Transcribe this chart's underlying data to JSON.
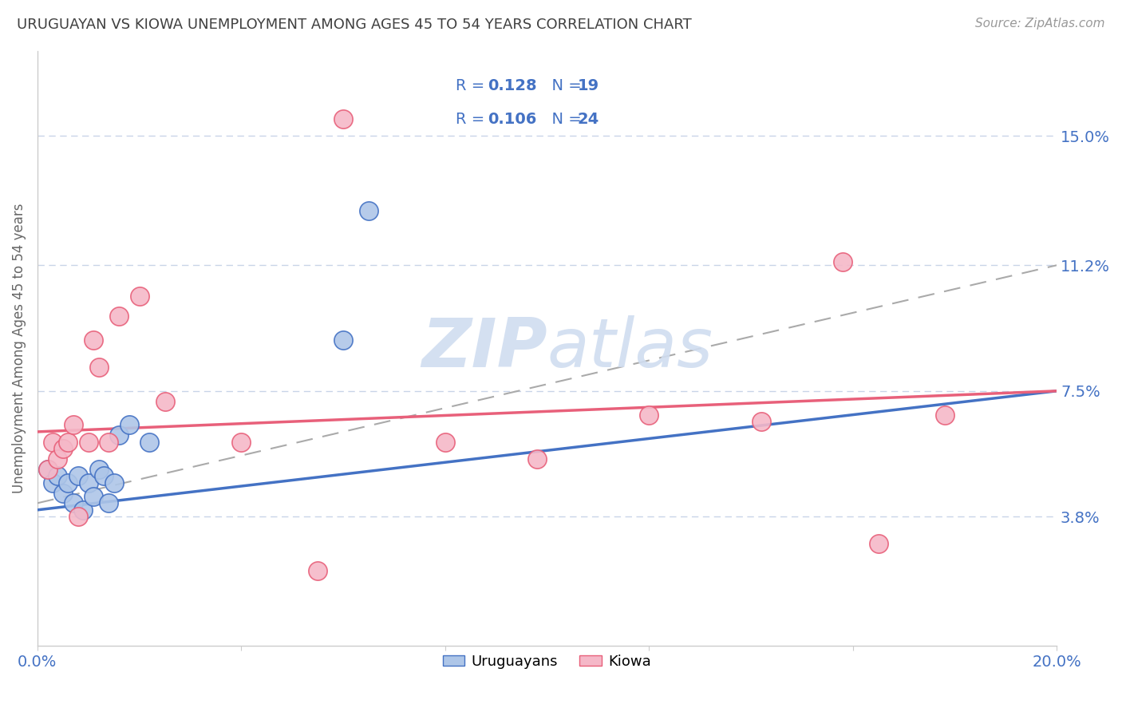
{
  "title": "URUGUAYAN VS KIOWA UNEMPLOYMENT AMONG AGES 45 TO 54 YEARS CORRELATION CHART",
  "source": "Source: ZipAtlas.com",
  "ylabel": "Unemployment Among Ages 45 to 54 years",
  "xlim": [
    0.0,
    0.2
  ],
  "ylim": [
    0.0,
    0.175
  ],
  "yticks": [
    0.038,
    0.075,
    0.112,
    0.15
  ],
  "ytick_labels": [
    "3.8%",
    "7.5%",
    "11.2%",
    "15.0%"
  ],
  "xticks": [
    0.0,
    0.04,
    0.08,
    0.12,
    0.16,
    0.2
  ],
  "xtick_labels": [
    "0.0%",
    "",
    "",
    "",
    "",
    "20.0%"
  ],
  "uruguayan_x": [
    0.002,
    0.003,
    0.004,
    0.005,
    0.006,
    0.007,
    0.008,
    0.009,
    0.01,
    0.011,
    0.012,
    0.013,
    0.014,
    0.015,
    0.016,
    0.018,
    0.022,
    0.06,
    0.065
  ],
  "uruguayan_y": [
    0.052,
    0.048,
    0.05,
    0.045,
    0.048,
    0.042,
    0.05,
    0.04,
    0.048,
    0.044,
    0.052,
    0.05,
    0.042,
    0.048,
    0.062,
    0.065,
    0.06,
    0.09,
    0.128
  ],
  "kiowa_x": [
    0.002,
    0.003,
    0.004,
    0.005,
    0.006,
    0.007,
    0.008,
    0.01,
    0.011,
    0.012,
    0.014,
    0.016,
    0.02,
    0.025,
    0.04,
    0.055,
    0.06,
    0.08,
    0.098,
    0.12,
    0.142,
    0.158,
    0.165,
    0.178
  ],
  "kiowa_y": [
    0.052,
    0.06,
    0.055,
    0.058,
    0.06,
    0.065,
    0.038,
    0.06,
    0.09,
    0.082,
    0.06,
    0.097,
    0.103,
    0.072,
    0.06,
    0.022,
    0.155,
    0.06,
    0.055,
    0.068,
    0.066,
    0.113,
    0.03,
    0.068
  ],
  "R_uruguayan": 0.128,
  "N_uruguayan": 19,
  "R_kiowa": 0.106,
  "N_kiowa": 24,
  "uruguayan_color": "#aec6e8",
  "kiowa_color": "#f5b8c8",
  "uruguayan_edge_color": "#4472c4",
  "kiowa_edge_color": "#e8607a",
  "uruguayan_trend_color": "#4472c4",
  "kiowa_trend_color": "#e8607a",
  "grid_color": "#c8d4e8",
  "background_color": "#ffffff",
  "title_color": "#404040",
  "legend_text_color": "#4472c4",
  "watermark_color": "#d0ddf0",
  "uru_trend_x0": 0.0,
  "uru_trend_y0": 0.04,
  "uru_trend_x1": 0.2,
  "uru_trend_y1": 0.075,
  "kio_trend_x0": 0.0,
  "kio_trend_y0": 0.063,
  "kio_trend_x1": 0.2,
  "kio_trend_y1": 0.075
}
